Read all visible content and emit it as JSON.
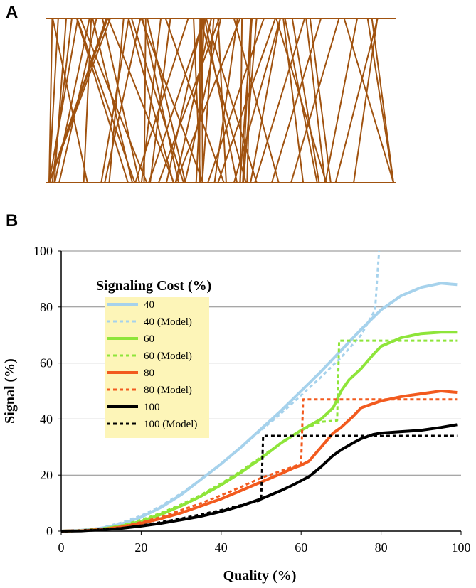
{
  "panels": {
    "a": "A",
    "b": "B"
  },
  "fiber_color": "#a0520f",
  "chart_data": {
    "type": "line",
    "xlabel": "Quality (%)",
    "ylabel": "Signal (%)",
    "xlim": [
      0,
      100
    ],
    "ylim": [
      0,
      100
    ],
    "xticks": [
      0,
      20,
      40,
      60,
      80,
      100
    ],
    "yticks": [
      0,
      20,
      40,
      60,
      80,
      100
    ],
    "grid": "horizontal",
    "legend": {
      "title": "Signaling Cost (%)",
      "placement": "upper-left inside",
      "background": "#fdf5b8"
    },
    "series": [
      {
        "name": "40",
        "color": "#a6d2ec",
        "style": "solid",
        "width": 4,
        "x": [
          0,
          5,
          10,
          15,
          20,
          25,
          30,
          35,
          40,
          45,
          50,
          55,
          60,
          65,
          70,
          75,
          80,
          85,
          90,
          95,
          99
        ],
        "y": [
          0,
          0.3,
          1,
          2.5,
          5,
          8.5,
          13,
          18.5,
          24,
          30,
          36.5,
          43,
          50,
          57,
          64.5,
          72,
          79,
          84,
          87,
          88.5,
          88
        ]
      },
      {
        "name": "40 (Model)",
        "color": "#a6d2ec",
        "style": "dashed",
        "width": 3,
        "x": [
          0,
          5,
          10,
          15,
          20,
          25,
          30,
          35,
          40,
          45,
          50,
          55,
          60,
          65,
          70,
          75,
          78.5,
          79,
          79.5
        ],
        "y": [
          0,
          0.3,
          1.2,
          3,
          5.5,
          9,
          13.5,
          18.5,
          24,
          30,
          36,
          42,
          48.5,
          55,
          62,
          70,
          79,
          90,
          100
        ]
      },
      {
        "name": "60",
        "color": "#8ee53a",
        "style": "solid",
        "width": 4,
        "x": [
          0,
          5,
          10,
          15,
          20,
          25,
          30,
          35,
          40,
          45,
          50,
          55,
          60,
          65,
          68,
          70,
          72,
          75,
          78,
          80,
          85,
          90,
          95,
          99
        ],
        "y": [
          0,
          0.2,
          0.8,
          1.8,
          3.5,
          6,
          9,
          12.5,
          16.5,
          21,
          26,
          31.5,
          36,
          40,
          44,
          50,
          54,
          58,
          63,
          66,
          69,
          70.5,
          71,
          71
        ]
      },
      {
        "name": "60 (Model)",
        "color": "#8ee53a",
        "style": "dashed",
        "width": 3,
        "x": [
          0,
          5,
          10,
          15,
          20,
          25,
          30,
          35,
          40,
          45,
          50,
          55,
          60,
          65,
          69,
          69.5,
          70,
          99
        ],
        "y": [
          0,
          0.2,
          0.8,
          2,
          4,
          6.5,
          9.5,
          13,
          17,
          21.5,
          26.5,
          31.5,
          36,
          39,
          39.5,
          68,
          68,
          68
        ]
      },
      {
        "name": "80",
        "color": "#f25a1e",
        "style": "solid",
        "width": 4,
        "x": [
          0,
          5,
          10,
          15,
          20,
          25,
          30,
          35,
          40,
          45,
          50,
          55,
          58,
          60,
          62,
          65,
          68,
          70,
          73,
          75,
          80,
          85,
          90,
          95,
          99
        ],
        "y": [
          0,
          0.2,
          0.6,
          1.4,
          2.8,
          4.5,
          6.5,
          9,
          11.5,
          14.5,
          17.5,
          20.5,
          22.5,
          23.5,
          25,
          30,
          35,
          37,
          41,
          44,
          46.5,
          48,
          49,
          50,
          49.5
        ]
      },
      {
        "name": "80 (Model)",
        "color": "#f25a1e",
        "style": "dashed",
        "width": 3,
        "x": [
          0,
          5,
          10,
          15,
          20,
          25,
          30,
          35,
          40,
          45,
          50,
          55,
          60,
          60.5,
          61,
          99
        ],
        "y": [
          0,
          0.2,
          0.7,
          1.6,
          3.2,
          5,
          7.5,
          10,
          12.8,
          15.8,
          19,
          21.5,
          24,
          47,
          47,
          47
        ]
      },
      {
        "name": "100",
        "color": "#000000",
        "style": "solid",
        "width": 4,
        "x": [
          0,
          5,
          10,
          15,
          20,
          25,
          30,
          35,
          40,
          45,
          50,
          55,
          58,
          60,
          62,
          65,
          68,
          70,
          73,
          75,
          78,
          80,
          85,
          90,
          95,
          99
        ],
        "y": [
          0,
          0.1,
          0.5,
          1,
          1.8,
          2.8,
          4,
          5.3,
          7,
          9,
          11.5,
          14.5,
          16.5,
          18,
          19.5,
          23,
          27,
          29,
          31.5,
          33,
          34.5,
          35,
          35.5,
          36,
          37,
          38
        ]
      },
      {
        "name": "100 (Model)",
        "color": "#000000",
        "style": "dashed",
        "width": 3,
        "x": [
          0,
          5,
          10,
          15,
          20,
          25,
          30,
          35,
          40,
          45,
          50,
          50.5,
          51,
          99
        ],
        "y": [
          0,
          0.1,
          0.5,
          1.1,
          2,
          3.2,
          4.5,
          6,
          7.5,
          9.3,
          11,
          34,
          34,
          34
        ]
      }
    ]
  }
}
